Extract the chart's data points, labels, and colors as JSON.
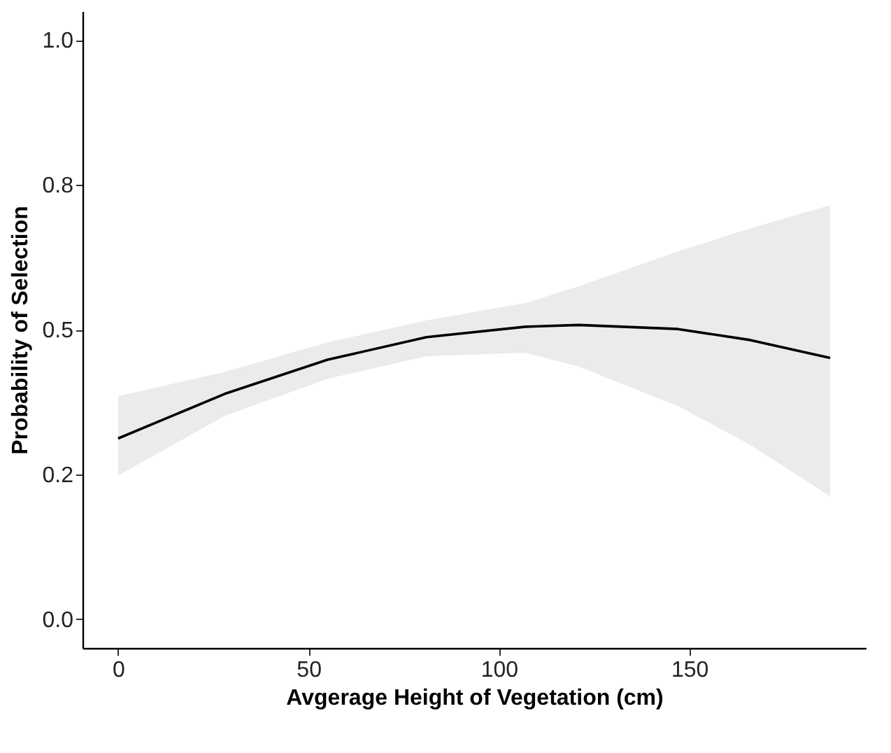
{
  "chart_data": {
    "type": "line",
    "xlabel": "Avgerage Height of Vegetation (cm)",
    "ylabel": "Probability of Selection",
    "x": [
      0,
      28,
      55,
      81,
      107,
      121,
      147,
      166,
      187
    ],
    "series": [
      {
        "color": "#000000",
        "values": [
          0.312,
          0.389,
          0.448,
          0.487,
          0.505,
          0.508,
          0.501,
          0.482,
          0.451
        ],
        "lower": [
          0.248,
          0.351,
          0.415,
          0.454,
          0.46,
          0.436,
          0.368,
          0.301,
          0.212
        ],
        "upper": [
          0.385,
          0.427,
          0.478,
          0.516,
          0.546,
          0.575,
          0.635,
          0.675,
          0.715
        ]
      }
    ],
    "xlim": [
      -9.35,
      196.35
    ],
    "xticks": [
      0,
      50,
      100,
      150
    ],
    "ylim": [
      -0.05,
      1.05
    ],
    "yticks": [
      {
        "value": 0,
        "label": "0.0"
      },
      {
        "value": 0.25,
        "label": "0.2"
      },
      {
        "value": 0.5,
        "label": "0.5"
      },
      {
        "value": 0.75,
        "label": "0.8"
      },
      {
        "value": 1,
        "label": "1.0"
      }
    ],
    "grid": false,
    "marker": "none",
    "line_style": "solid"
  }
}
